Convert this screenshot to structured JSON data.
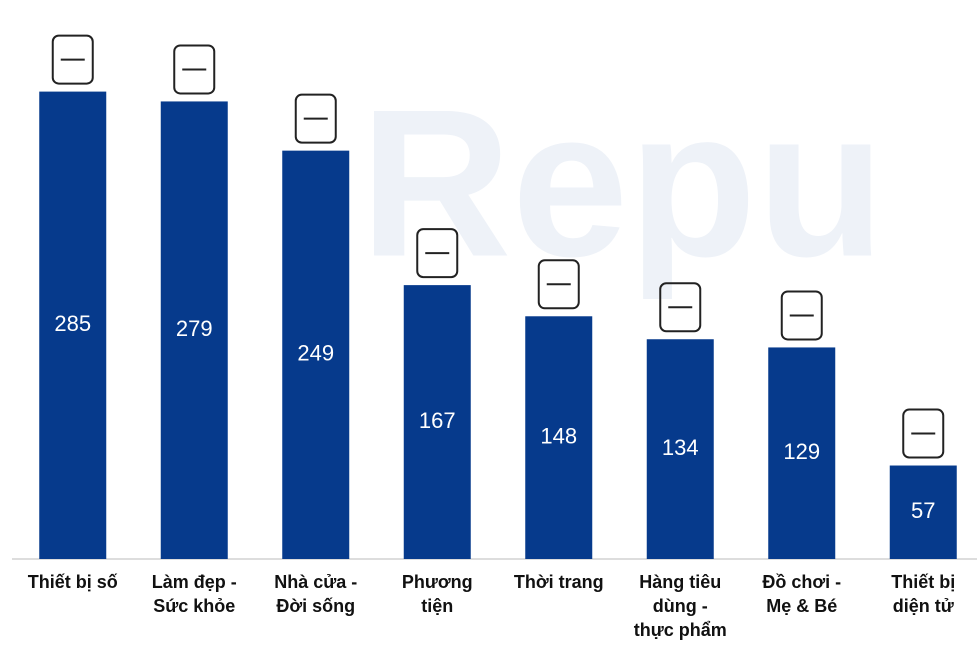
{
  "chart_data": {
    "type": "bar",
    "watermark": "Repu",
    "categories": [
      "Thiết bị số",
      "Làm đẹp -\nSức khỏe",
      "Nhà cửa -\nĐời sống",
      "Phương\ntiện",
      "Thời trang",
      "Hàng tiêu\ndùng -\nthực phẩm",
      "Đồ chơi -\nMẹ & Bé",
      "Thiết bị\ndiện tử"
    ],
    "values": [
      285,
      279,
      249,
      167,
      148,
      134,
      129,
      57
    ],
    "color": "#063a8c",
    "ylim": [
      0,
      300
    ]
  }
}
